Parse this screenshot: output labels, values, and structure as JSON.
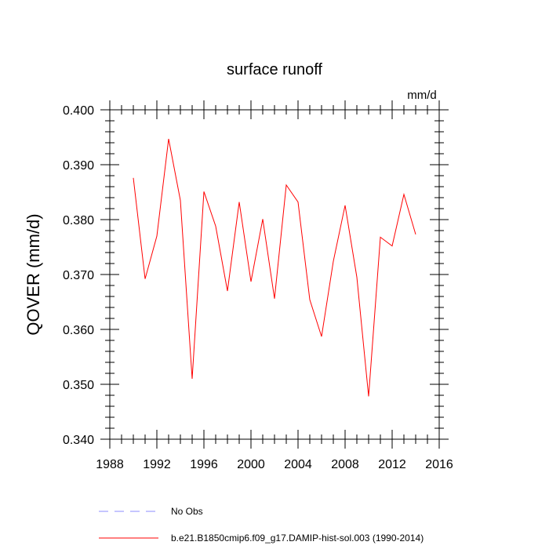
{
  "chart_data": {
    "type": "line",
    "title": "surface runoff",
    "units_label": "mm/d",
    "ylabel": "QOVER  (mm/d)",
    "xlabel": "",
    "xlim": [
      1988,
      2016
    ],
    "ylim": [
      0.34,
      0.4
    ],
    "x_major_ticks": [
      1988,
      1992,
      1996,
      2000,
      2004,
      2008,
      2012,
      2016
    ],
    "x_tick_labels": [
      "1988",
      "1992",
      "1996",
      "2000",
      "2004",
      "2008",
      "2012",
      "2016"
    ],
    "y_major_ticks": [
      0.34,
      0.35,
      0.36,
      0.37,
      0.38,
      0.39,
      0.4
    ],
    "y_tick_labels": [
      "0.340",
      "0.350",
      "0.360",
      "0.370",
      "0.380",
      "0.390",
      "0.400"
    ],
    "grid": false,
    "legend_position": "bottom",
    "series": [
      {
        "name": "b.e21.B1850cmip6.f09_g17.DAMIP-hist-sol.003 (1990-2014)",
        "color": "#ff0000",
        "style": "solid",
        "x": [
          1990,
          1991,
          1992,
          1993,
          1994,
          1995,
          1996,
          1997,
          1998,
          1999,
          2000,
          2001,
          2002,
          2003,
          2004,
          2005,
          2006,
          2007,
          2008,
          2009,
          2010,
          2011,
          2012,
          2013,
          2014
        ],
        "y": [
          0.3876,
          0.3692,
          0.377,
          0.3947,
          0.3835,
          0.351,
          0.3851,
          0.3788,
          0.367,
          0.3832,
          0.3687,
          0.3801,
          0.3656,
          0.3863,
          0.3832,
          0.3654,
          0.3587,
          0.3724,
          0.3826,
          0.3695,
          0.3478,
          0.3768,
          0.3752,
          0.3846,
          0.3773
        ]
      }
    ],
    "legend": [
      {
        "label": "No Obs",
        "color": "#8c8cff",
        "style": "dashed"
      },
      {
        "label": "b.e21.B1850cmip6.f09_g17.DAMIP-hist-sol.003 (1990-2014)",
        "color": "#ff0000",
        "style": "solid"
      }
    ]
  }
}
